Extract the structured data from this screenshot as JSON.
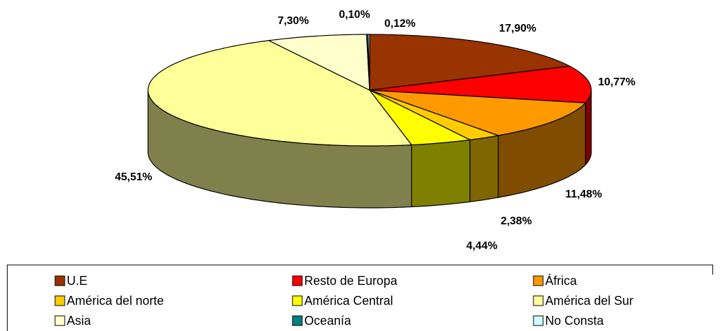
{
  "chart_data": {
    "type": "pie3d",
    "categories": [
      "U.E",
      "Resto de Europa",
      "África",
      "América del norte",
      "América Central",
      "América del Sur",
      "Asia",
      "Oceanía",
      "No Consta"
    ],
    "values": [
      17.9,
      10.77,
      11.48,
      2.38,
      4.44,
      45.51,
      7.3,
      0.1,
      0.12
    ],
    "value_labels": [
      "17,90%",
      "10,77%",
      "11,48%",
      "2,38%",
      "4,44%",
      "45,51%",
      "7,30%",
      "0,10%",
      "0,12%"
    ],
    "colors": [
      "#993300",
      "#FF0000",
      "#FF9900",
      "#FFCC00",
      "#FFFF00",
      "#FFFF99",
      "#FFFFCC",
      "#008080",
      "#CCFFFF"
    ],
    "legend": "bottom"
  }
}
